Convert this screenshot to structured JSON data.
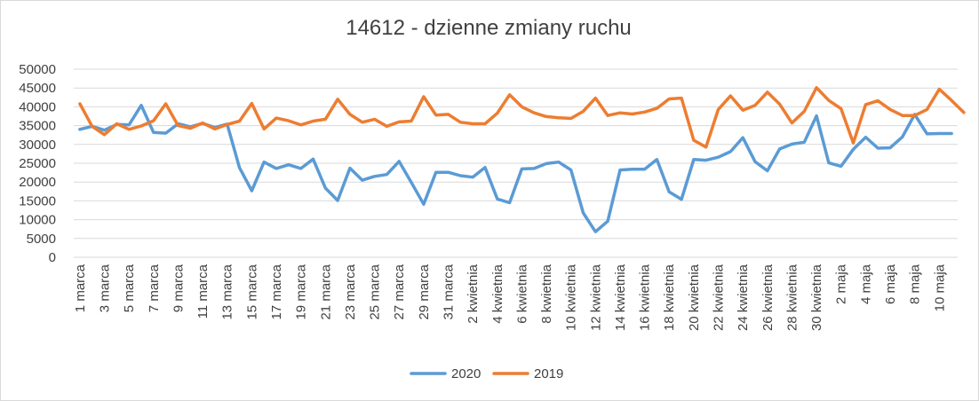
{
  "chart_data": {
    "type": "line",
    "title": "14612 - dzienne zmiany ruchu",
    "xlabel": "",
    "ylabel": "",
    "ylim": [
      0,
      50000
    ],
    "yticks": [
      0,
      5000,
      10000,
      15000,
      20000,
      25000,
      30000,
      35000,
      40000,
      45000,
      50000
    ],
    "grid": true,
    "legend_position": "bottom",
    "x_tick_labels": [
      "1 marca",
      "3 marca",
      "5 marca",
      "7 marca",
      "9 marca",
      "11 marca",
      "13 marca",
      "15 marca",
      "17 marca",
      "19 marca",
      "21 marca",
      "23 marca",
      "25 marca",
      "27 marca",
      "29 marca",
      "31 marca",
      "2 kwietnia",
      "4 kwietnia",
      "6 kwietnia",
      "8 kwietnia",
      "10 kwietnia",
      "12 kwietnia",
      "14 kwietnia",
      "16 kwietnia",
      "18 kwietnia",
      "20 kwietnia",
      "22 kwietnia",
      "24 kwietnia",
      "26 kwietnia",
      "28 kwietnia",
      "30 kwietnia",
      "2 maja",
      "4 maja",
      "6 maja",
      "8 maja",
      "10 maja"
    ],
    "series": [
      {
        "name": "2020",
        "color": "#5b9bd5",
        "values": [
          34000,
          34800,
          33800,
          35300,
          35200,
          40400,
          33200,
          33000,
          35500,
          34700,
          35600,
          34500,
          35400,
          23800,
          17700,
          25300,
          23600,
          24600,
          23600,
          26100,
          18400,
          15100,
          23700,
          20500,
          21500,
          22000,
          25500,
          19900,
          14100,
          22600,
          22600,
          21700,
          21300,
          23900,
          15500,
          14500,
          23500,
          23600,
          24900,
          25300,
          23200,
          11800,
          6800,
          9600,
          23200,
          23400,
          23400,
          26000,
          17400,
          15400,
          26000,
          25800,
          26600,
          28100,
          31800,
          25400,
          23000,
          28800,
          30100,
          30600,
          37600,
          25100,
          24200,
          28700,
          31900,
          29000,
          29100,
          32000,
          38000,
          32800,
          32900,
          32900
        ]
      },
      {
        "name": "2019",
        "color": "#ed7d31",
        "values": [
          40800,
          34800,
          32600,
          35500,
          34000,
          34900,
          36300,
          40800,
          35000,
          34300,
          35700,
          34100,
          35300,
          36200,
          40900,
          34100,
          37000,
          36300,
          35200,
          36200,
          36700,
          42000,
          38000,
          35900,
          36700,
          34800,
          36000,
          36200,
          42700,
          37800,
          38000,
          35900,
          35500,
          35500,
          38300,
          43200,
          40000,
          38400,
          37400,
          37100,
          36900,
          38800,
          42300,
          37700,
          38400,
          38100,
          38600,
          39600,
          42100,
          42300,
          31100,
          29300,
          39300,
          42900,
          39100,
          40400,
          43900,
          40700,
          35700,
          38800,
          45100,
          41700,
          39500,
          30400,
          40600,
          41600,
          39300,
          37700,
          37700,
          39300,
          44700,
          41700,
          38500
        ]
      }
    ]
  }
}
